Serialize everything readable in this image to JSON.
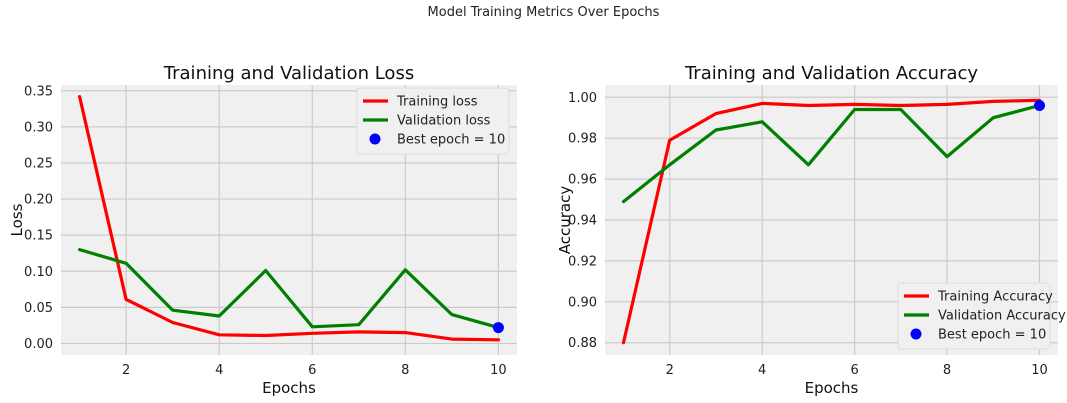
{
  "figure": {
    "suptitle": "Model Training Metrics Over Epochs"
  },
  "chart_data": [
    {
      "type": "line",
      "title": "Training and Validation Loss",
      "xlabel": "Epochs",
      "ylabel": "Loss",
      "xlim": [
        0.6,
        10.4
      ],
      "ylim": [
        -0.016,
        0.358
      ],
      "xticks": [
        2,
        4,
        6,
        8,
        10
      ],
      "xtick_labels": [
        "2",
        "4",
        "6",
        "8",
        "10"
      ],
      "yticks": [
        0.0,
        0.05,
        0.1,
        0.15,
        0.2,
        0.25,
        0.3,
        0.35
      ],
      "ytick_labels": [
        "0.00",
        "0.05",
        "0.10",
        "0.15",
        "0.20",
        "0.25",
        "0.30",
        "0.35"
      ],
      "grid": true,
      "legend_position": "top-right",
      "x": [
        1,
        2,
        3,
        4,
        5,
        6,
        7,
        8,
        9,
        10
      ],
      "series": [
        {
          "name": "Training loss",
          "color": "#ff0000",
          "values": [
            0.342,
            0.061,
            0.029,
            0.012,
            0.011,
            0.014,
            0.016,
            0.015,
            0.006,
            0.005
          ]
        },
        {
          "name": "Validation loss",
          "color": "#008000",
          "values": [
            0.13,
            0.111,
            0.046,
            0.038,
            0.101,
            0.023,
            0.026,
            0.102,
            0.04,
            0.022
          ]
        }
      ],
      "best_point": {
        "label": "Best epoch = 10",
        "x": 10,
        "y": 0.022,
        "color": "#0000ff"
      }
    },
    {
      "type": "line",
      "title": "Training and Validation Accuracy",
      "xlabel": "Epochs",
      "ylabel": "Accuracy",
      "xlim": [
        0.6,
        10.4
      ],
      "ylim": [
        0.874,
        1.006
      ],
      "xticks": [
        2,
        4,
        6,
        8,
        10
      ],
      "xtick_labels": [
        "2",
        "4",
        "6",
        "8",
        "10"
      ],
      "yticks": [
        0.88,
        0.9,
        0.92,
        0.94,
        0.96,
        0.98,
        1.0
      ],
      "ytick_labels": [
        "0.88",
        "0.90",
        "0.92",
        "0.94",
        "0.96",
        "0.98",
        "1.00"
      ],
      "grid": true,
      "legend_position": "bottom-right",
      "x": [
        1,
        2,
        3,
        4,
        5,
        6,
        7,
        8,
        9,
        10
      ],
      "series": [
        {
          "name": "Training Accuracy",
          "color": "#ff0000",
          "values": [
            0.88,
            0.979,
            0.992,
            0.997,
            0.996,
            0.9965,
            0.996,
            0.9965,
            0.998,
            0.9985
          ]
        },
        {
          "name": "Validation Accuracy",
          "color": "#008000",
          "values": [
            0.949,
            0.967,
            0.984,
            0.988,
            0.967,
            0.994,
            0.994,
            0.971,
            0.99,
            0.996
          ]
        }
      ],
      "best_point": {
        "label": "Best epoch = 10",
        "x": 10,
        "y": 0.996,
        "color": "#0000ff"
      }
    }
  ]
}
